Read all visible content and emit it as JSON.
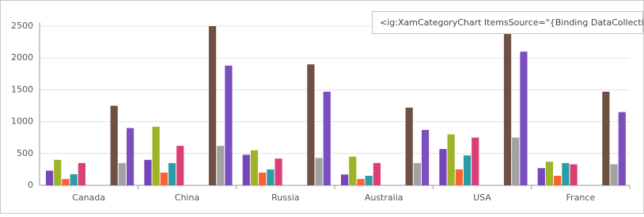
{
  "chart_data": {
    "type": "bar",
    "annotation": "<ig:XamCategoryChart ItemsSource=\"{Binding DataCollection}\"/>",
    "categories": [
      "Canada",
      "China",
      "Russia",
      "Australia",
      "USA",
      "France"
    ],
    "series": [
      {
        "color": "#7446b9",
        "values": [
          230,
          400,
          480,
          170,
          570,
          270
        ]
      },
      {
        "color": "#9fb328",
        "values": [
          400,
          920,
          550,
          450,
          800,
          370
        ]
      },
      {
        "color": "#f96232",
        "values": [
          100,
          200,
          200,
          100,
          250,
          150
        ]
      },
      {
        "color": "#2e9ca6",
        "values": [
          175,
          350,
          250,
          150,
          470,
          350
        ]
      },
      {
        "color": "#dc3f76",
        "values": [
          350,
          620,
          420,
          350,
          750,
          330
        ]
      },
      {
        "color": "#6f5144",
        "values": [
          1250,
          2500,
          1900,
          1220,
          2400,
          1470
        ]
      },
      {
        "color": "#a2a2a2",
        "values": [
          350,
          620,
          430,
          350,
          750,
          330
        ]
      },
      {
        "color": "#7b4fbd",
        "values": [
          900,
          1880,
          1470,
          870,
          2100,
          1150
        ]
      }
    ],
    "ylim": [
      0,
      2500
    ],
    "yticks": [
      0,
      500,
      1000,
      1500,
      2000,
      2500
    ],
    "grid": true
  }
}
